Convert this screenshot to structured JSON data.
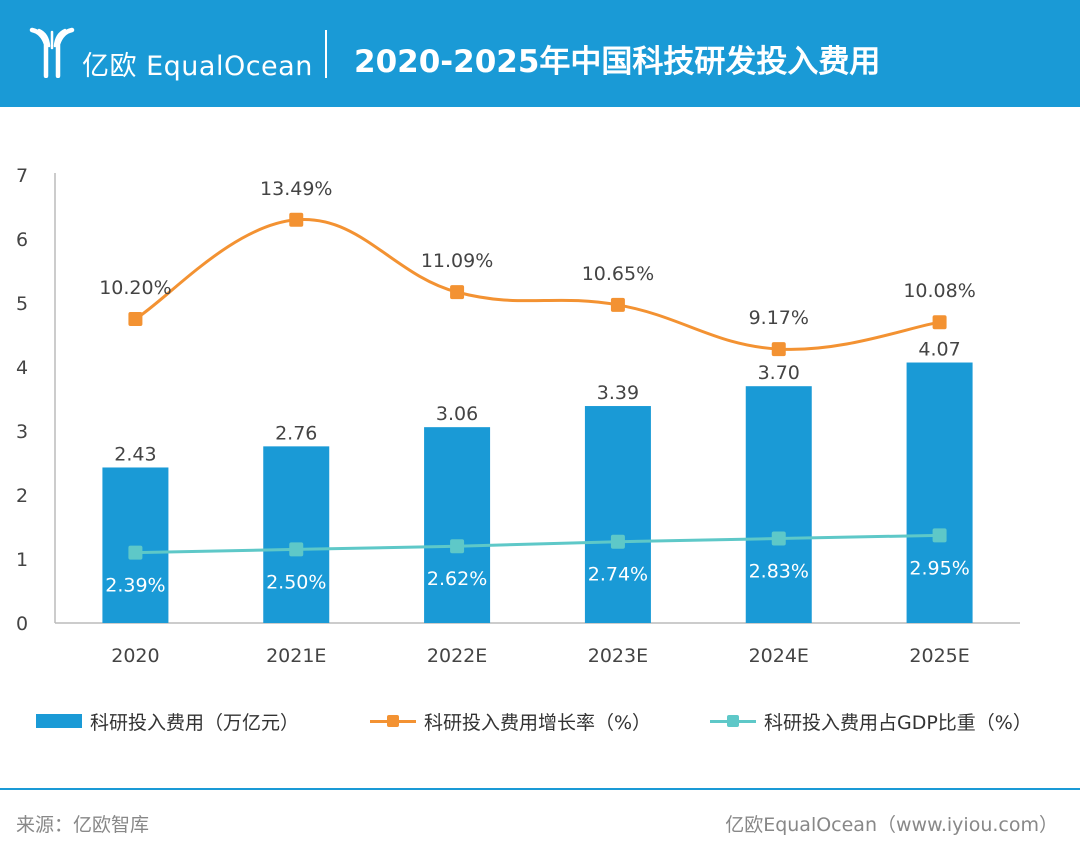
{
  "header": {
    "logo_text": "亿欧 EqualOcean",
    "title": "2020-2025年中国科技研发投入费用"
  },
  "colors": {
    "header_bg": "#1a9ad6",
    "bar": "#1a9ad6",
    "growth_line": "#f39232",
    "gdp_line": "#5ec8c8",
    "axis": "#bbbbbb",
    "text": "#444444"
  },
  "chart_data": {
    "type": "bar",
    "categories": [
      "2020",
      "2021E",
      "2022E",
      "2023E",
      "2024E",
      "2025E"
    ],
    "ylim": [
      0,
      7
    ],
    "yticks": [
      0,
      1,
      2,
      3,
      4,
      5,
      6,
      7
    ],
    "series": [
      {
        "name": "科研投入费用（万亿元）",
        "type": "bar",
        "values": [
          2.43,
          2.76,
          3.06,
          3.39,
          3.7,
          4.07
        ],
        "labels": [
          "2.43",
          "2.76",
          "3.06",
          "3.39",
          "3.70",
          "4.07"
        ]
      },
      {
        "name": "科研投入费用增长率（%）",
        "type": "line",
        "smooth": true,
        "values": [
          10.2,
          13.49,
          11.09,
          10.65,
          9.17,
          10.08
        ],
        "labels": [
          "10.20%",
          "13.49%",
          "11.09%",
          "10.65%",
          "9.17%",
          "10.08%"
        ],
        "plot_values": [
          4.75,
          6.3,
          5.17,
          4.97,
          4.28,
          4.7
        ]
      },
      {
        "name": "科研投入费用占GDP比重（%）",
        "type": "line",
        "smooth": false,
        "values": [
          2.39,
          2.5,
          2.62,
          2.74,
          2.83,
          2.95
        ],
        "labels": [
          "2.39%",
          "2.50%",
          "2.62%",
          "2.74%",
          "2.83%",
          "2.95%"
        ],
        "plot_values": [
          1.1,
          1.15,
          1.2,
          1.27,
          1.32,
          1.37
        ]
      }
    ]
  },
  "footer": {
    "source": "来源：亿欧智库",
    "credit": "亿欧EqualOcean（www.iyiou.com）"
  }
}
